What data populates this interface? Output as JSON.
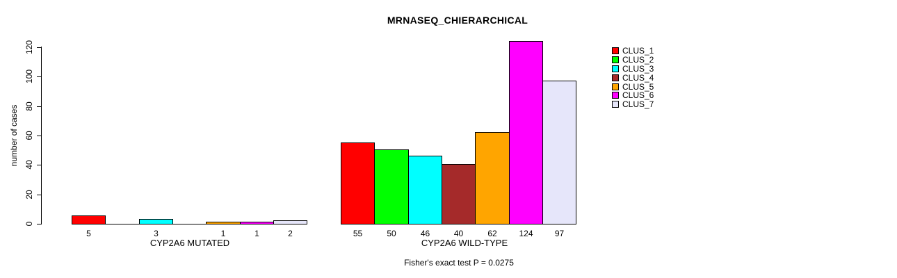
{
  "title": "MRNASEQ_CHIERARCHICAL",
  "footer": "Fisher's exact test P = 0.0275",
  "y_axis": {
    "label": "number of cases"
  },
  "chart_data": {
    "type": "bar",
    "title": "MRNASEQ_CHIERARCHICAL",
    "ylabel": "number of cases",
    "ylim": [
      0,
      120
    ],
    "yticks": [
      0,
      20,
      40,
      60,
      80,
      100,
      120
    ],
    "grid": false,
    "legend_position": "right",
    "clusters": [
      "CLUS_1",
      "CLUS_2",
      "CLUS_3",
      "CLUS_4",
      "CLUS_5",
      "CLUS_6",
      "CLUS_7"
    ],
    "colors": [
      "#ff0000",
      "#00ff00",
      "#00ffff",
      "#a52a2a",
      "#ffa500",
      "#ff00ff",
      "#e6e6fa"
    ],
    "groups": [
      {
        "label": "CYP2A6 MUTATED",
        "values": [
          5,
          0,
          3,
          0,
          1,
          1,
          2
        ],
        "bar_labels": [
          "5",
          "",
          "3",
          "",
          "1",
          "1",
          "2"
        ]
      },
      {
        "label": "CYP2A6 WILD-TYPE",
        "values": [
          55,
          50,
          46,
          40,
          62,
          124,
          97
        ],
        "bar_labels": [
          "55",
          "50",
          "46",
          "40",
          "62",
          "124",
          "97"
        ]
      }
    ],
    "annotation": "Fisher's exact test P = 0.0275"
  }
}
